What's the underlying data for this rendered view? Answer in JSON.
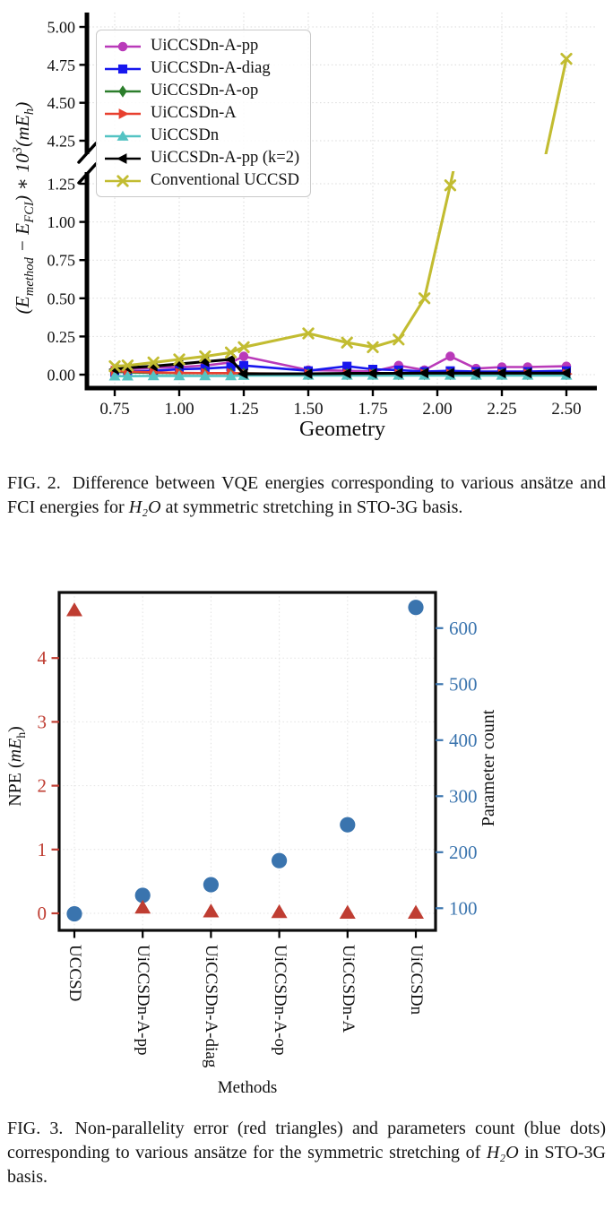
{
  "fig2": {
    "xlabel": "Geometry",
    "ylabel": {
      "p1": "(E",
      "s1": "method",
      "p2": " − E",
      "s2": "FCI",
      "p3": ") ∗ 10",
      "e1": "3",
      "p4": "(mE",
      "s3": "h",
      "p5": ")"
    },
    "caption": {
      "tag": "FIG. 2.",
      "before": "Difference between VQE energies corresponding to various ansätze and FCI energies for",
      "formula": "H₂O",
      "after": "at symmetric stretching in STO-3G basis."
    }
  },
  "fig3": {
    "xlabel": "Methods",
    "left_label": {
      "p1": "NPE (",
      "it": "mE",
      "s": "h",
      "p2": ")"
    },
    "right_label": "Parameter count",
    "caption": {
      "tag": "FIG. 3.",
      "before": "Non-parallelity error (red triangles) and parameters count (blue dots) corresponding to various ansätze for the symmetric stretching of",
      "formula": "H₂O",
      "after": "in STO-3G basis."
    }
  },
  "chart_data": [
    {
      "id": "fig2",
      "type": "line",
      "title": "",
      "xlabel": "Geometry",
      "ylabel": "(E_method - E_FCI) * 10^3 (mE_h)",
      "x_ticks": [
        "0.75",
        "1.00",
        "1.25",
        "1.50",
        "1.75",
        "2.00",
        "2.25",
        "2.50"
      ],
      "y_ticks_lower": [
        "0.00",
        "0.25",
        "0.50",
        "0.75",
        "1.00",
        "1.25"
      ],
      "y_ticks_upper": [
        "4.25",
        "4.50",
        "4.75",
        "5.00"
      ],
      "y_axis_break": [
        1.33,
        4.17
      ],
      "x_range": [
        0.64,
        2.61
      ],
      "grid": true,
      "legend_position": "upper-left",
      "series": [
        {
          "label": "UiCCSDn-A-pp",
          "color": "#b93ab9",
          "marker": "circle",
          "x": [
            0.75,
            0.8,
            0.9,
            1.0,
            1.1,
            1.2,
            1.25,
            1.5,
            1.65,
            1.75,
            1.85,
            1.95,
            2.05,
            2.15,
            2.25,
            2.35,
            2.5
          ],
          "y": [
            0.03,
            0.035,
            0.045,
            0.05,
            0.06,
            0.08,
            0.12,
            0.03,
            0.025,
            0.02,
            0.06,
            0.03,
            0.12,
            0.04,
            0.05,
            0.05,
            0.055
          ]
        },
        {
          "label": "UiCCSDn-A-diag",
          "color": "#1717ee",
          "marker": "square",
          "x": [
            0.75,
            0.8,
            0.9,
            1.0,
            1.1,
            1.2,
            1.25,
            1.5,
            1.65,
            1.75,
            1.85,
            1.95,
            2.05,
            2.15,
            2.25,
            2.35,
            2.5
          ],
          "y": [
            0.015,
            0.02,
            0.025,
            0.035,
            0.04,
            0.05,
            0.06,
            0.025,
            0.055,
            0.035,
            0.03,
            0.02,
            0.025,
            0.02,
            0.02,
            0.02,
            0.025
          ]
        },
        {
          "label": "UiCCSDn-A-op",
          "color": "#2c7e2c",
          "marker": "diamond",
          "x": [
            0.75,
            0.8,
            0.9,
            1.0,
            1.1,
            1.2,
            1.25,
            1.5,
            1.65,
            1.75,
            1.85,
            1.95,
            2.05,
            2.15,
            2.25,
            2.35,
            2.5
          ],
          "y": [
            0.02,
            0.015,
            0.012,
            0.01,
            0.01,
            0.01,
            0.008,
            0.003,
            0.003,
            0.003,
            0.003,
            0.003,
            0.003,
            0.003,
            0.003,
            0.003,
            0.003
          ]
        },
        {
          "label": "UiCCSDn-A",
          "color": "#e8402f",
          "marker": "triangle-right",
          "x": [
            0.75,
            0.8,
            0.9,
            1.0,
            1.1,
            1.2,
            1.25,
            1.5,
            1.65,
            1.75,
            1.85,
            1.95,
            2.05,
            2.15,
            2.25,
            2.35,
            2.5
          ],
          "y": [
            0.025,
            0.02,
            0.015,
            0.012,
            0.01,
            0.01,
            0.008,
            0.005,
            0.005,
            0.005,
            0.005,
            0.005,
            0.005,
            0.005,
            0.005,
            0.005,
            0.005
          ]
        },
        {
          "label": "UiCCSDn",
          "color": "#54c3c3",
          "marker": "triangle-up",
          "x": [
            0.75,
            0.8,
            0.9,
            1.0,
            1.1,
            1.2,
            1.25,
            1.5,
            1.65,
            1.75,
            1.85,
            1.95,
            2.05,
            2.15,
            2.25,
            2.35,
            2.5
          ],
          "y": [
            -0.01,
            -0.01,
            -0.008,
            -0.008,
            -0.008,
            -0.008,
            -0.006,
            -0.005,
            -0.005,
            -0.005,
            -0.005,
            -0.005,
            -0.005,
            -0.005,
            -0.005,
            -0.005,
            -0.005
          ]
        },
        {
          "label": "UiCCSDn-A-pp (k=2)",
          "color": "#000000",
          "marker": "triangle-left",
          "x": [
            0.75,
            0.8,
            0.9,
            1.0,
            1.1,
            1.2,
            1.25,
            1.5,
            1.65,
            1.75,
            1.85,
            1.95,
            2.05,
            2.15,
            2.25,
            2.35,
            2.5
          ],
          "y": [
            0.035,
            0.045,
            0.055,
            0.07,
            0.085,
            0.1,
            0.005,
            0.006,
            0.008,
            0.008,
            0.009,
            0.01,
            0.01,
            0.01,
            0.01,
            0.01,
            0.01
          ]
        },
        {
          "label": "Conventional UCCSD",
          "color": "#c2bc31",
          "marker": "x",
          "x": [
            0.75,
            0.8,
            0.9,
            1.0,
            1.1,
            1.2,
            1.25,
            1.5,
            1.65,
            1.75,
            1.85,
            1.95,
            2.05,
            2.5
          ],
          "y": [
            0.055,
            0.06,
            0.08,
            0.1,
            0.12,
            0.145,
            0.18,
            0.27,
            0.21,
            0.18,
            0.23,
            0.5,
            1.24,
            4.79
          ]
        }
      ]
    },
    {
      "id": "fig3",
      "type": "scatter",
      "title": "",
      "xlabel": "Methods",
      "categories": [
        "UCCSD",
        "UiCCSDn-A-pp",
        "UiCCSDn-A-diag",
        "UiCCSDn-A-op",
        "UiCCSDn-A",
        "UiCCSDn"
      ],
      "grid": true,
      "left_axis": {
        "label": "NPE (mE_h)",
        "color": "#bf3d32",
        "ticks": [
          "0",
          "1",
          "2",
          "3",
          "4"
        ],
        "range": [
          -0.45,
          4.95
        ]
      },
      "right_axis": {
        "label": "Parameter count",
        "color": "#3a74ae",
        "ticks": [
          "100",
          "200",
          "300",
          "400",
          "500",
          "600"
        ],
        "range": [
          55,
          665
        ]
      },
      "series": [
        {
          "name": "NPE",
          "axis": "left",
          "marker": "triangle-up",
          "color": "#bf3d32",
          "values": [
            4.75,
            0.09,
            0.03,
            0.02,
            0.01,
            0.01
          ]
        },
        {
          "name": "Parameter count",
          "axis": "right",
          "marker": "circle",
          "color": "#3a74ae",
          "values": [
            90,
            123,
            142,
            185,
            249,
            637
          ]
        }
      ]
    }
  ]
}
